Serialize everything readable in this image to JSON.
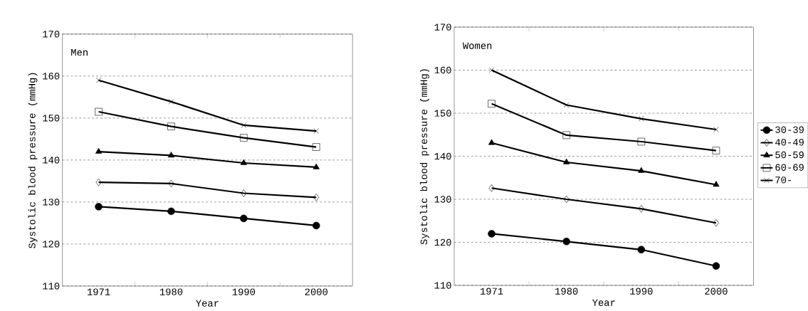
{
  "chart_data": [
    {
      "type": "line",
      "xlabel": "Year",
      "ylabel": "Systolic blood pressure (mmHg)",
      "annotations": [
        "Men"
      ],
      "categories": [
        "1971",
        "1980",
        "1990",
        "2000"
      ],
      "ylim": [
        110,
        170
      ],
      "yticks": [
        110,
        120,
        130,
        140,
        150,
        160,
        170
      ],
      "grid": "y",
      "legend": false,
      "line_style": "solid",
      "series": [
        {
          "color": "#000000",
          "marker": "circle",
          "values": [
            128.9,
            127.8,
            126.1,
            124.4
          ]
        },
        {
          "color": "#000000",
          "marker": "diamond",
          "values": [
            134.7,
            134.4,
            132.1,
            131.1
          ]
        },
        {
          "color": "#000000",
          "marker": "triangle",
          "values": [
            142.0,
            141.1,
            139.3,
            138.3
          ]
        },
        {
          "color": "#000000",
          "marker": "square",
          "values": [
            151.5,
            148.0,
            145.3,
            143.1
          ]
        },
        {
          "color": "#000000",
          "marker": "cross",
          "values": [
            159.0,
            153.9,
            148.3,
            146.9
          ]
        }
      ]
    },
    {
      "type": "line",
      "xlabel": "Year",
      "ylabel": "Systolic blood pressure (mmHg)",
      "annotations": [
        "Women"
      ],
      "categories": [
        "1971",
        "1980",
        "1990",
        "2000"
      ],
      "ylim": [
        110,
        170
      ],
      "yticks": [
        110,
        120,
        130,
        140,
        150,
        160,
        170
      ],
      "grid": "y",
      "legend": "right",
      "line_style": "solid",
      "series": [
        {
          "name": "30-39",
          "color": "#000000",
          "marker": "circle",
          "values": [
            122.0,
            120.2,
            118.3,
            114.5
          ]
        },
        {
          "name": "40-49",
          "color": "#000000",
          "marker": "diamond",
          "values": [
            132.6,
            130.0,
            127.8,
            124.5
          ]
        },
        {
          "name": "50-59",
          "color": "#000000",
          "marker": "triangle",
          "values": [
            143.1,
            138.6,
            136.6,
            133.4
          ]
        },
        {
          "name": "60-69",
          "color": "#000000",
          "marker": "square",
          "values": [
            152.2,
            144.9,
            143.4,
            141.3
          ]
        },
        {
          "name": "70-",
          "color": "#000000",
          "marker": "cross",
          "values": [
            160.0,
            151.9,
            148.7,
            146.2
          ]
        }
      ]
    }
  ]
}
